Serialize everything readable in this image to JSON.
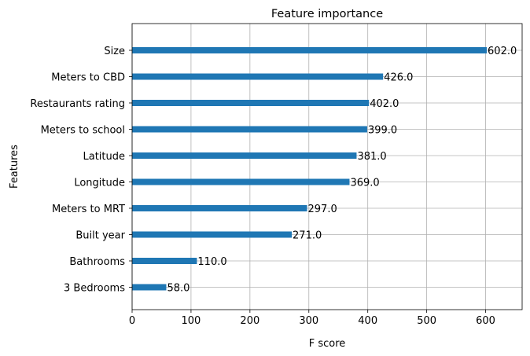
{
  "chart_data": {
    "type": "bar",
    "orientation": "horizontal",
    "title": "Feature importance",
    "xlabel": "F score",
    "ylabel": "Features",
    "categories": [
      "Size",
      "Meters to CBD",
      "Restaurants rating",
      "Meters to school",
      "Latitude",
      "Longitude",
      "Meters to MRT",
      "Built year",
      "Bathrooms",
      "3 Bedrooms"
    ],
    "values": [
      602.0,
      426.0,
      402.0,
      399.0,
      381.0,
      369.0,
      297.0,
      271.0,
      110.0,
      58.0
    ],
    "value_labels": [
      "602.0",
      "426.0",
      "402.0",
      "399.0",
      "381.0",
      "369.0",
      "297.0",
      "271.0",
      "110.0",
      "58.0"
    ],
    "xlim": [
      0,
      662
    ],
    "xticks": [
      0,
      100,
      200,
      300,
      400,
      500,
      600
    ],
    "xtick_labels": [
      "0",
      "100",
      "200",
      "300",
      "400",
      "500",
      "600"
    ],
    "grid": true,
    "bar_color": "#1f77b4",
    "grid_color": "#b0b0b0"
  }
}
